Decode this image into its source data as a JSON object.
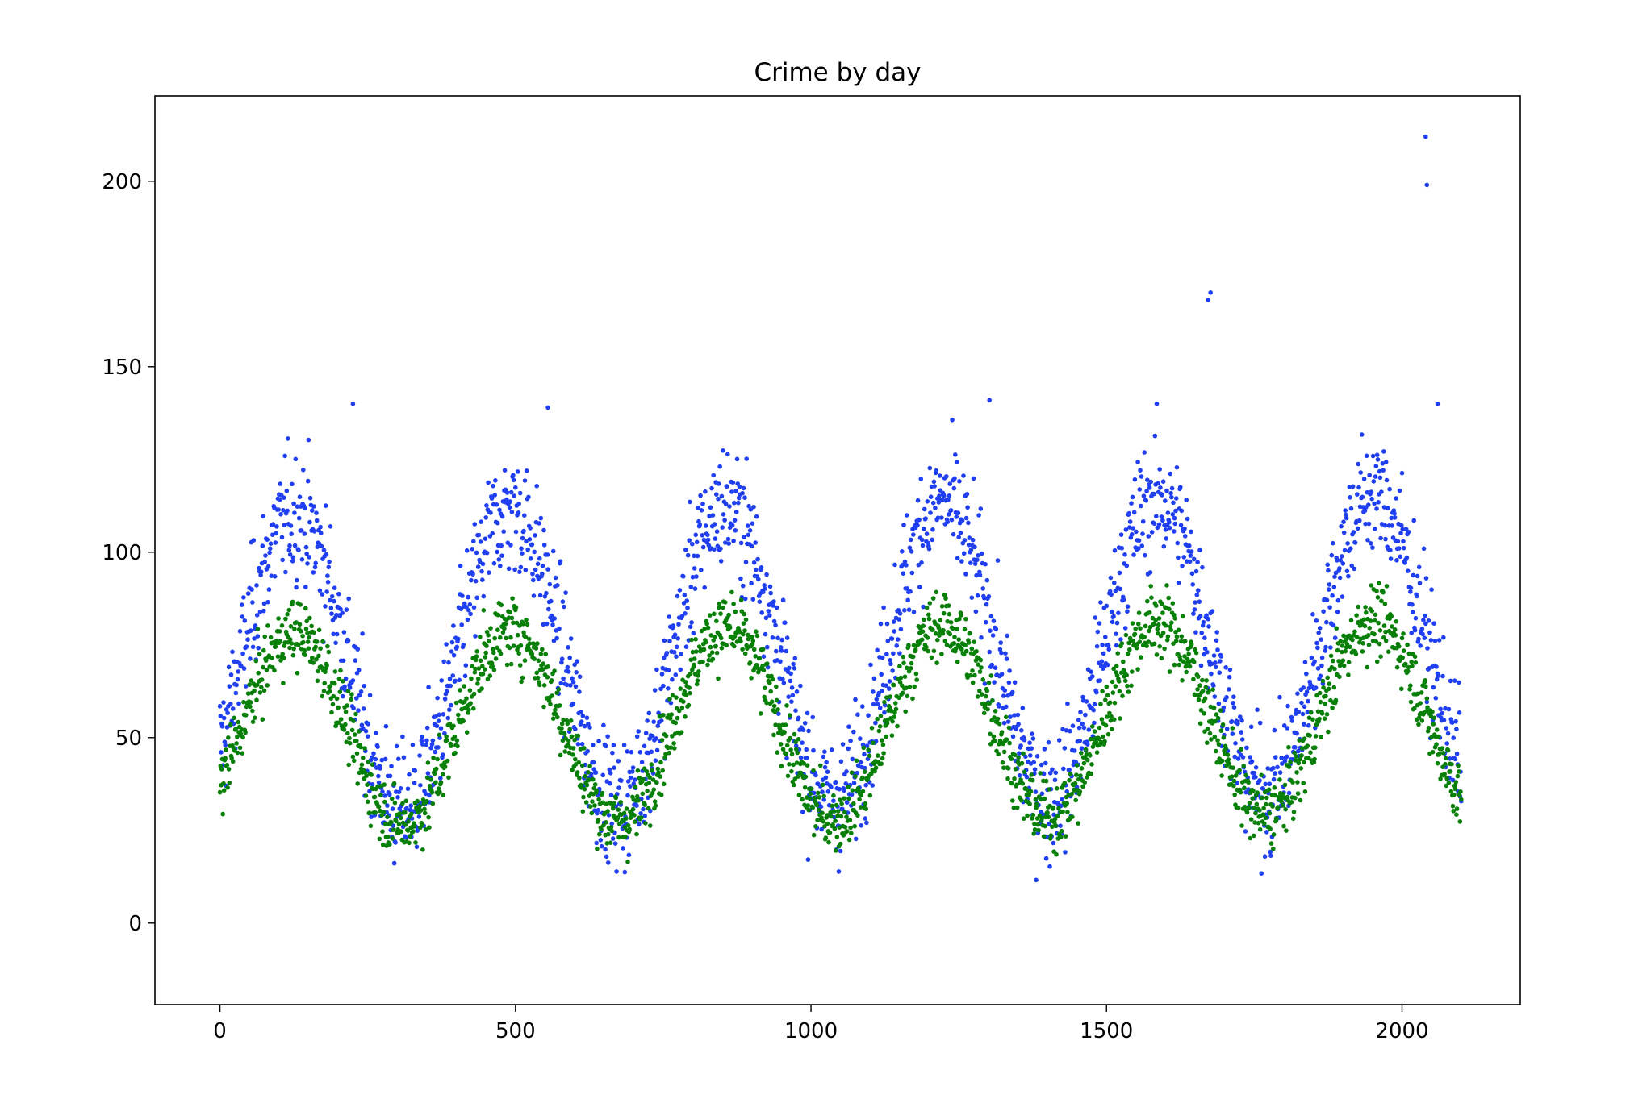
{
  "chart_data": {
    "type": "scatter",
    "title": "Crime by day",
    "xlabel": "",
    "ylabel": "",
    "xlim": [
      -110,
      2200
    ],
    "ylim": [
      -22,
      223
    ],
    "xticks": [
      0,
      500,
      1000,
      1500,
      2000
    ],
    "yticks": [
      0,
      50,
      100,
      150,
      200
    ],
    "xtick_labels": [
      "0",
      "500",
      "1000",
      "1500",
      "2000"
    ],
    "ytick_labels": [
      "0",
      "50",
      "100",
      "150",
      "200"
    ],
    "grid": false,
    "legend": "none",
    "x_range": [
      0,
      2100
    ],
    "colors": {
      "series_blue": "#1f3ff0",
      "series_green": "#088008"
    },
    "series": [
      {
        "color": "#1f3ff0",
        "points_per_day": 1,
        "wave_period_days": 365,
        "wave_center": 70,
        "wave_amplitude": 40,
        "noise_spread": 28,
        "outliers": [
          [
            1672,
            168
          ],
          [
            1676,
            170
          ],
          [
            2040,
            212
          ],
          [
            2042,
            199
          ],
          [
            2060,
            140
          ],
          [
            225,
            140
          ],
          [
            1302,
            141
          ],
          [
            555,
            139
          ]
        ]
      },
      {
        "color": "#088008",
        "points_per_day": 1,
        "wave_period_days": 365,
        "wave_center": 52,
        "wave_amplitude": 26,
        "noise_spread": 14
      }
    ]
  }
}
